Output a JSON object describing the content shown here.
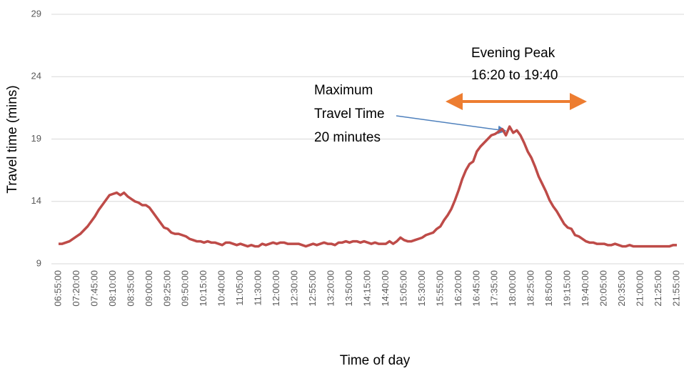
{
  "chart_data": {
    "type": "line",
    "y_label": "Travel time (mins)",
    "x_label": "Time of day",
    "color": "#be4b48",
    "grid": true,
    "ylim": [
      9,
      29
    ],
    "yticks": [
      9,
      14,
      19,
      24,
      29
    ],
    "annotations": [
      {
        "lines": [
          "Evening Peak",
          "16:20 to 19:40"
        ],
        "color": "#ed7d31"
      },
      {
        "lines": [
          "Maximum",
          "Travel Time",
          "20 minutes"
        ],
        "color": "#4f81bd"
      }
    ],
    "categories": [
      "06:55:00",
      null,
      null,
      null,
      null,
      "07:20:00",
      null,
      null,
      null,
      null,
      "07:45:00",
      null,
      null,
      null,
      null,
      "08:10:00",
      null,
      null,
      null,
      null,
      "08:35:00",
      null,
      null,
      null,
      null,
      "09:00:00",
      null,
      null,
      null,
      null,
      "09:25:00",
      null,
      null,
      null,
      null,
      "09:50:00",
      null,
      null,
      null,
      null,
      "10:15:00",
      null,
      null,
      null,
      null,
      "10:40:00",
      null,
      null,
      null,
      null,
      "11:05:00",
      null,
      null,
      null,
      null,
      "11:30:00",
      null,
      null,
      null,
      null,
      "12:00:00",
      null,
      null,
      null,
      null,
      "12:30:00",
      null,
      null,
      null,
      null,
      "12:55:00",
      null,
      null,
      null,
      null,
      "13:20:00",
      null,
      null,
      null,
      null,
      "13:50:00",
      null,
      null,
      null,
      null,
      "14:15:00",
      null,
      null,
      null,
      null,
      "14:40:00",
      null,
      null,
      null,
      null,
      "15:05:00",
      null,
      null,
      null,
      null,
      "15:30:00",
      null,
      null,
      null,
      null,
      "15:55:00",
      null,
      null,
      null,
      null,
      "16:20:00",
      null,
      null,
      null,
      null,
      "16:45:00",
      null,
      null,
      null,
      null,
      "17:35:00",
      null,
      null,
      null,
      null,
      "18:00:00",
      null,
      null,
      null,
      null,
      "18:25:00",
      null,
      null,
      null,
      null,
      "18:50:00",
      null,
      null,
      null,
      null,
      "19:15:00",
      null,
      null,
      null,
      null,
      "19:40:00",
      null,
      null,
      null,
      null,
      "20:05:00",
      null,
      null,
      null,
      null,
      "20:35:00",
      null,
      null,
      null,
      null,
      "21:00:00",
      null,
      null,
      null,
      null,
      "21:25:00",
      null,
      null,
      null,
      null,
      "21:55:00"
    ],
    "values": [
      10.6,
      10.6,
      10.7,
      10.8,
      11.0,
      11.2,
      11.4,
      11.7,
      12.0,
      12.4,
      12.8,
      13.3,
      13.7,
      14.1,
      14.5,
      14.6,
      14.7,
      14.5,
      14.7,
      14.4,
      14.2,
      14.0,
      13.9,
      13.7,
      13.7,
      13.5,
      13.1,
      12.7,
      12.3,
      11.9,
      11.8,
      11.5,
      11.4,
      11.4,
      11.3,
      11.2,
      11.0,
      10.9,
      10.8,
      10.8,
      10.7,
      10.8,
      10.7,
      10.7,
      10.6,
      10.5,
      10.7,
      10.7,
      10.6,
      10.5,
      10.6,
      10.5,
      10.4,
      10.5,
      10.4,
      10.4,
      10.6,
      10.5,
      10.6,
      10.7,
      10.6,
      10.7,
      10.7,
      10.6,
      10.6,
      10.6,
      10.6,
      10.5,
      10.4,
      10.5,
      10.6,
      10.5,
      10.6,
      10.7,
      10.6,
      10.6,
      10.5,
      10.7,
      10.7,
      10.8,
      10.7,
      10.8,
      10.8,
      10.7,
      10.8,
      10.7,
      10.6,
      10.7,
      10.6,
      10.6,
      10.6,
      10.8,
      10.6,
      10.8,
      11.1,
      10.9,
      10.8,
      10.8,
      10.9,
      11.0,
      11.1,
      11.3,
      11.4,
      11.5,
      11.8,
      12.0,
      12.5,
      12.9,
      13.4,
      14.1,
      14.9,
      15.8,
      16.5,
      17.0,
      17.2,
      18.0,
      18.4,
      18.7,
      19.0,
      19.3,
      19.4,
      19.6,
      19.8,
      19.3,
      20.0,
      19.5,
      19.7,
      19.3,
      18.7,
      18.0,
      17.5,
      16.8,
      16.0,
      15.4,
      14.8,
      14.1,
      13.6,
      13.2,
      12.7,
      12.2,
      11.9,
      11.8,
      11.3,
      11.2,
      11.0,
      10.8,
      10.7,
      10.7,
      10.6,
      10.6,
      10.6,
      10.5,
      10.5,
      10.6,
      10.5,
      10.4,
      10.4,
      10.5,
      10.4,
      10.4,
      10.4,
      10.4,
      10.4,
      10.4,
      10.4,
      10.4,
      10.4,
      10.4,
      10.4,
      10.5,
      10.5
    ]
  }
}
